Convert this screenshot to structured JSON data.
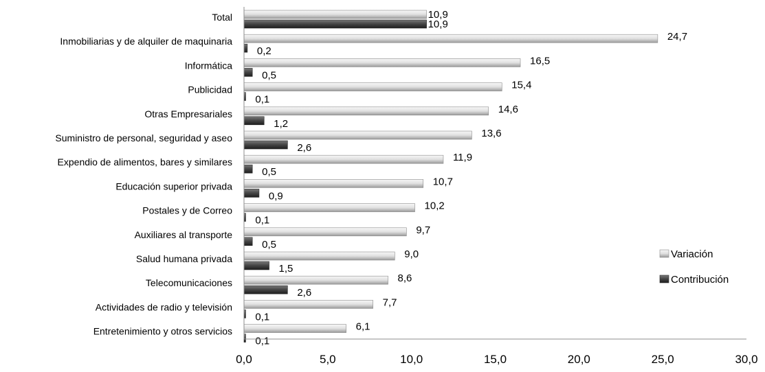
{
  "chart_data": {
    "type": "bar",
    "orientation": "horizontal",
    "categories": [
      "Total",
      "Inmobiliarias y de alquiler de maquinaria",
      "Informática",
      "Publicidad",
      "Otras Empresariales",
      "Suministro de personal, seguridad y aseo",
      "Expendio de alimentos, bares y similares",
      "Educación superior privada",
      "Postales y de Correo",
      "Auxiliares al transporte",
      "Salud humana privada",
      "Telecomunicaciones",
      "Actividades de radio y televisión",
      "Entretenimiento y otros servicios"
    ],
    "series": [
      {
        "name": "Variación",
        "color": "#e3e3e3",
        "values": [
          10.9,
          24.7,
          16.5,
          15.4,
          14.6,
          13.6,
          11.9,
          10.7,
          10.2,
          9.7,
          9.0,
          8.6,
          7.7,
          6.1
        ],
        "labels": [
          "10,9",
          "24,7",
          "16,5",
          "15,4",
          "14,6",
          "13,6",
          "11,9",
          "10,7",
          "10,2",
          "9,7",
          "9,0",
          "8,6",
          "7,7",
          "6,1"
        ]
      },
      {
        "name": "Contribución",
        "color": "#4a4a4a",
        "values": [
          10.9,
          0.2,
          0.5,
          0.1,
          1.2,
          2.6,
          0.5,
          0.9,
          0.1,
          0.5,
          1.5,
          2.6,
          0.1,
          0.1
        ],
        "labels": [
          "10,9",
          "0,2",
          "0,5",
          "0,1",
          "1,2",
          "2,6",
          "0,5",
          "0,9",
          "0,1",
          "0,5",
          "1,5",
          "2,6",
          "0,1",
          "0,1"
        ]
      }
    ],
    "xlim": [
      0,
      30
    ],
    "xticks": [
      "0,0",
      "5,0",
      "10,0",
      "15,0",
      "20,0",
      "25,0",
      "30,0"
    ],
    "grid": false,
    "legend_position": "right"
  }
}
